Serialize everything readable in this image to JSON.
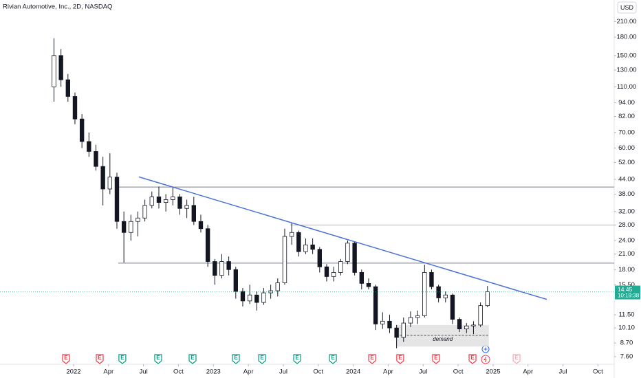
{
  "chart_data": {
    "type": "candlestick",
    "title": "Rivian Automotive, Inc., 2D, NASDAQ",
    "currency": "USD",
    "timer": "10:19:38",
    "log_scale": true,
    "up_color": "#ffffff",
    "down_color": "#131722",
    "x": [
      2021.86,
      2021.91,
      2021.96,
      2022.01,
      2022.06,
      2022.11,
      2022.16,
      2022.21,
      2022.26,
      2022.31,
      2022.36,
      2022.41,
      2022.46,
      2022.51,
      2022.56,
      2022.61,
      2022.66,
      2022.71,
      2022.76,
      2022.81,
      2022.86,
      2022.91,
      2022.96,
      2023.01,
      2023.06,
      2023.11,
      2023.16,
      2023.21,
      2023.26,
      2023.31,
      2023.36,
      2023.41,
      2023.46,
      2023.51,
      2023.56,
      2023.61,
      2023.66,
      2023.71,
      2023.76,
      2023.81,
      2023.86,
      2023.91,
      2023.96,
      2024.01,
      2024.06,
      2024.11,
      2024.16,
      2024.21,
      2024.26,
      2024.31,
      2024.36,
      2024.41,
      2024.46,
      2024.51,
      2024.56,
      2024.61,
      2024.66,
      2024.71,
      2024.76,
      2024.81,
      2024.86,
      2024.91,
      2024.96
    ],
    "open": [
      110,
      150,
      118,
      100,
      80,
      64,
      58,
      50,
      40,
      45,
      29,
      26,
      29,
      30,
      34,
      37,
      35,
      36,
      37,
      33,
      34,
      29,
      27,
      19.5,
      17,
      19.5,
      18,
      14.5,
      13.2,
      14,
      13,
      14.3,
      14.6,
      15.8,
      25,
      26,
      21.5,
      23,
      22,
      18.5,
      16.8,
      17.5,
      19.5,
      23.4,
      17.5,
      15.7,
      15.2,
      10.5,
      10.8,
      10.1,
      9.2,
      10.6,
      11.2,
      11.4,
      17.5,
      15.2,
      13.6,
      14,
      11,
      10,
      10.3,
      10.4,
      12.6
    ],
    "high": [
      178,
      160,
      125,
      104,
      84,
      70,
      62,
      55,
      57,
      47,
      32,
      31,
      32,
      36,
      39,
      41,
      38,
      41,
      38,
      36,
      37,
      31,
      28,
      20,
      21,
      20.5,
      18.5,
      15,
      15.5,
      14.5,
      15,
      15.5,
      16.5,
      27,
      28.5,
      26.5,
      24.5,
      24.5,
      22.5,
      19,
      18.5,
      20,
      24,
      23.8,
      18,
      16.5,
      15.5,
      11.8,
      11.5,
      10.4,
      11.2,
      11.9,
      12,
      18.9,
      18,
      15.5,
      14.5,
      14.2,
      11.2,
      10.6,
      10.8,
      13,
      15.3
    ],
    "low": [
      95,
      110,
      95,
      76,
      60,
      55,
      48,
      34,
      38,
      27,
      19.3,
      24,
      25,
      29,
      33,
      33,
      32,
      34,
      31,
      30,
      28,
      26,
      18.5,
      15.5,
      16.5,
      17,
      13.5,
      12.5,
      12.8,
      12,
      12.7,
      13.5,
      13.8,
      15.5,
      23,
      20.5,
      21,
      21,
      17.5,
      16,
      16,
      17,
      19,
      17,
      14.8,
      14.8,
      9.9,
      10,
      9.6,
      8.26,
      8.8,
      10.2,
      10.5,
      11.2,
      14.8,
      13,
      13,
      10.5,
      9.7,
      9.6,
      9.5,
      10.2,
      12.4
    ],
    "close": [
      150,
      118,
      100,
      80,
      64,
      58,
      50,
      40,
      45,
      29,
      26,
      29,
      30,
      34,
      37,
      35,
      36,
      37,
      33,
      34,
      29,
      27,
      19.5,
      17,
      19.5,
      18,
      14.5,
      13.2,
      14,
      13,
      14.3,
      14.6,
      15.8,
      25,
      26,
      21.5,
      23,
      22,
      18.5,
      16.8,
      17.5,
      19.5,
      23.4,
      17.5,
      15.7,
      15.2,
      10.5,
      10.8,
      10.1,
      9.2,
      10.6,
      11.2,
      11.4,
      17.5,
      15.2,
      13.6,
      14,
      11,
      10,
      10.3,
      10.4,
      12.6,
      14.45
    ],
    "xlim": [
      2021.474,
      2025.866
    ],
    "ylim": [
      7.05,
      260
    ],
    "xticks": [
      {
        "value": 2022,
        "label": "2022"
      },
      {
        "value": 2022.25,
        "label": "Apr"
      },
      {
        "value": 2022.5,
        "label": "Jul"
      },
      {
        "value": 2022.75,
        "label": "Oct"
      },
      {
        "value": 2023,
        "label": "2023"
      },
      {
        "value": 2023.25,
        "label": "Apr"
      },
      {
        "value": 2023.5,
        "label": "Jul"
      },
      {
        "value": 2023.75,
        "label": "Oct"
      },
      {
        "value": 2024,
        "label": "2024"
      },
      {
        "value": 2024.25,
        "label": "Apr"
      },
      {
        "value": 2024.5,
        "label": "Jul"
      },
      {
        "value": 2024.75,
        "label": "Oct"
      },
      {
        "value": 2025,
        "label": "2025"
      },
      {
        "value": 2025.25,
        "label": "Apr"
      },
      {
        "value": 2025.5,
        "label": "Jul"
      },
      {
        "value": 2025.75,
        "label": "Oct"
      }
    ],
    "yticks": [
      {
        "value": 210,
        "label": "210.00"
      },
      {
        "value": 180,
        "label": "180.00"
      },
      {
        "value": 150,
        "label": "150.00"
      },
      {
        "value": 130,
        "label": "130.00"
      },
      {
        "value": 110,
        "label": "110.00"
      },
      {
        "value": 94,
        "label": "94.00"
      },
      {
        "value": 82,
        "label": "82.00"
      },
      {
        "value": 70,
        "label": "70.00"
      },
      {
        "value": 60,
        "label": "60.00"
      },
      {
        "value": 52,
        "label": "52.00"
      },
      {
        "value": 44,
        "label": "44.00"
      },
      {
        "value": 38,
        "label": "38.00"
      },
      {
        "value": 32,
        "label": "32.00"
      },
      {
        "value": 28,
        "label": "28.00"
      },
      {
        "value": 24,
        "label": "24.00"
      },
      {
        "value": 21,
        "label": "21.00"
      },
      {
        "value": 18,
        "label": "18.00"
      },
      {
        "value": 15.5,
        "label": "15.50"
      },
      {
        "value": 11.5,
        "label": "11.50"
      },
      {
        "value": 10.1,
        "label": "10.10"
      },
      {
        "value": 8.7,
        "label": "8.70"
      },
      {
        "value": 7.6,
        "label": "7.60"
      }
    ],
    "price_line_color": "#22ab94",
    "levels": [
      {
        "y": 40.8,
        "x_from": 2022.32,
        "color": "#787b86"
      },
      {
        "y": 28.0,
        "x_from": 2023.55,
        "color": "#b2b5be"
      },
      {
        "y": 19.2,
        "x_from": 2022.32,
        "color": "#787b86"
      }
    ],
    "trendline": {
      "x": [
        2022.467,
        2025.384
      ],
      "y": [
        45.1,
        13.4
      ],
      "color": "#4a72d9"
    },
    "zone": {
      "label": "demand",
      "x": [
        2024.31,
        2024.97
      ],
      "y": [
        8.4,
        10.4
      ],
      "mid": 9.38,
      "color": "#e0e0e0"
    },
    "events": [
      {
        "x": 2021.946,
        "label": "E",
        "color": "#f23645"
      },
      {
        "x": 2022.187,
        "label": "E",
        "color": "#f23645"
      },
      {
        "x": 2022.349,
        "label": "E",
        "color": "#089981"
      },
      {
        "x": 2022.605,
        "label": "E",
        "color": "#089981"
      },
      {
        "x": 2022.851,
        "label": "E",
        "color": "#089981"
      },
      {
        "x": 2023.161,
        "label": "E",
        "color": "#089981"
      },
      {
        "x": 2023.348,
        "label": "E",
        "color": "#089981"
      },
      {
        "x": 2023.599,
        "label": "E",
        "color": "#089981"
      },
      {
        "x": 2023.855,
        "label": "E",
        "color": "#089981"
      },
      {
        "x": 2024.135,
        "label": "E",
        "color": "#f23645"
      },
      {
        "x": 2024.336,
        "label": "E",
        "color": "#f23645"
      },
      {
        "x": 2024.592,
        "label": "E",
        "color": "#f23645"
      },
      {
        "x": 2024.853,
        "label": "E",
        "color": "#f23645"
      },
      {
        "x": 2025.168,
        "label": "E",
        "color": "#f7a9b0"
      }
    ]
  }
}
